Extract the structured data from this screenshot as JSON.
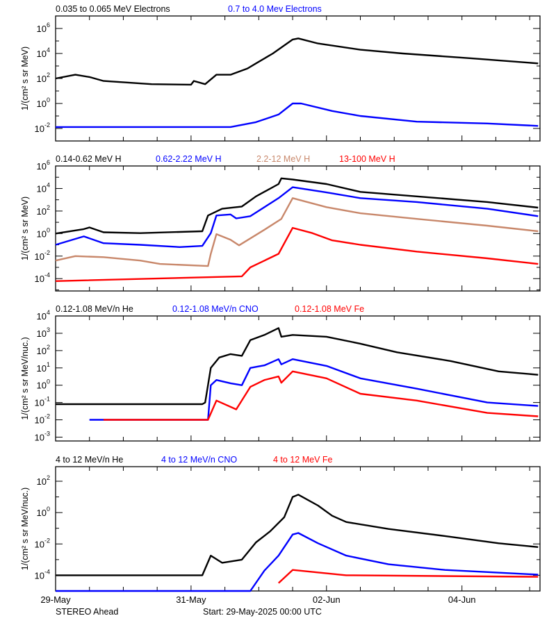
{
  "footer": {
    "spacecraft": "STEREO Ahead",
    "start": "Start: 29-May-2025 00:00 UTC"
  },
  "x_axis": {
    "range": [
      "2025-05-29 00:00",
      "2025-06-05 03:40"
    ],
    "ticks": [
      {
        "t": "2025-05-29 00:00",
        "label": "29-May"
      },
      {
        "t": "2025-05-31 00:00",
        "label": "31-May"
      },
      {
        "t": "2025-06-02 00:00",
        "label": "02-Jun"
      },
      {
        "t": "2025-06-04 00:00",
        "label": "04-Jun"
      }
    ],
    "minor_tick_hours": 12
  },
  "chart_data": [
    {
      "type": "line",
      "yscale": "log",
      "ylabel": "1/(cm² s sr MeV)",
      "ylim": [
        0.001,
        10000000.0
      ],
      "yticks": [
        1000000.0,
        10000.0,
        100.0,
        1,
        0.01
      ],
      "legend": [
        {
          "label": "0.035 to 0.065 MeV Electrons",
          "color": "#000000"
        },
        {
          "label": "0.7 to 4.0 Mev Electrons",
          "color": "#0000ff"
        }
      ],
      "series": [
        {
          "name": "0.035 to 0.065 MeV Electrons",
          "color": "#000000",
          "points": [
            [
              "2025-05-29 00:00",
              100
            ],
            [
              "2025-05-29 07:00",
              200
            ],
            [
              "2025-05-29 12:00",
              130
            ],
            [
              "2025-05-29 17:00",
              63
            ],
            [
              "2025-05-30 10:00",
              35
            ],
            [
              "2025-05-31 00:00",
              32
            ],
            [
              "2025-05-31 01:00",
              63
            ],
            [
              "2025-05-31 05:00",
              35
            ],
            [
              "2025-05-31 09:00",
              200
            ],
            [
              "2025-05-31 14:00",
              200
            ],
            [
              "2025-05-31 20:00",
              630
            ],
            [
              "2025-05-31 23:00",
              1600
            ],
            [
              "2025-06-01 05:00",
              10000.0
            ],
            [
              "2025-06-01 12:00",
              130000.0
            ],
            [
              "2025-06-01 14:00",
              160000.0
            ],
            [
              "2025-06-01 21:00",
              63000.0
            ],
            [
              "2025-06-02 12:00",
              20000.0
            ],
            [
              "2025-06-03 03:00",
              10000.0
            ],
            [
              "2025-06-04 04:00",
              4000.0
            ],
            [
              "2025-06-05 03:00",
              1600.0
            ]
          ]
        },
        {
          "name": "0.7 to 4.0 Mev Electrons",
          "color": "#0000ff",
          "points": [
            [
              "2025-05-29 00:00",
              0.013
            ],
            [
              "2025-05-31 14:00",
              0.013
            ],
            [
              "2025-05-31 23:00",
              0.032
            ],
            [
              "2025-06-01 07:00",
              0.13
            ],
            [
              "2025-06-01 12:00",
              1
            ],
            [
              "2025-06-01 15:00",
              1
            ],
            [
              "2025-06-02 02:00",
              0.25
            ],
            [
              "2025-06-02 12:00",
              0.1
            ],
            [
              "2025-06-03 08:00",
              0.035
            ],
            [
              "2025-06-04 09:00",
              0.025
            ],
            [
              "2025-06-05 03:00",
              0.016
            ]
          ]
        }
      ]
    },
    {
      "type": "line",
      "yscale": "log",
      "ylabel": "1/(cm² s sr MeV)",
      "ylim": [
        8e-06,
        1000000.0
      ],
      "yticks": [
        1000000.0,
        10000.0,
        100.0,
        1,
        0.01,
        0.0001
      ],
      "legend": [
        {
          "label": "0.14-0.62 MeV H",
          "color": "#000000"
        },
        {
          "label": "0.62-2.22 MeV H",
          "color": "#0000ff"
        },
        {
          "label": "2.2-12 MeV H",
          "color": "#c8876a"
        },
        {
          "label": "13-100 MeV H",
          "color": "#ff0000"
        }
      ],
      "series": [
        {
          "name": "0.14-0.62 MeV H",
          "color": "#000000",
          "points": [
            [
              "2025-05-29 00:00",
              1
            ],
            [
              "2025-05-29 10:00",
              2.5
            ],
            [
              "2025-05-29 12:00",
              3.5
            ],
            [
              "2025-05-29 17:00",
              1.3
            ],
            [
              "2025-05-30 06:00",
              1.1
            ],
            [
              "2025-05-31 04:00",
              1.6
            ],
            [
              "2025-05-31 06:00",
              40
            ],
            [
              "2025-05-31 11:00",
              160
            ],
            [
              "2025-05-31 18:00",
              250
            ],
            [
              "2025-05-31 23:00",
              2000
            ],
            [
              "2025-06-01 07:00",
              25000.0
            ],
            [
              "2025-06-01 08:00",
              80000.0
            ],
            [
              "2025-06-01 12:00",
              63000.0
            ],
            [
              "2025-06-02 00:00",
              25000.0
            ],
            [
              "2025-06-02 12:00",
              5000.0
            ],
            [
              "2025-06-03 08:00",
              2000.0
            ],
            [
              "2025-06-04 09:00",
              630
            ],
            [
              "2025-06-05 03:00",
              200
            ]
          ]
        },
        {
          "name": "0.62-2.22 MeV H",
          "color": "#0000ff",
          "points": [
            [
              "2025-05-29 00:00",
              0.1
            ],
            [
              "2025-05-29 10:00",
              0.56
            ],
            [
              "2025-05-29 17:00",
              0.14
            ],
            [
              "2025-05-30 06:00",
              0.1
            ],
            [
              "2025-05-30 20:00",
              0.063
            ],
            [
              "2025-05-31 04:00",
              0.08
            ],
            [
              "2025-05-31 07:00",
              1.1
            ],
            [
              "2025-05-31 09:00",
              40
            ],
            [
              "2025-05-31 14:00",
              50
            ],
            [
              "2025-05-31 16:00",
              22
            ],
            [
              "2025-05-31 21:00",
              35
            ],
            [
              "2025-06-01 07:00",
              1400
            ],
            [
              "2025-06-01 12:00",
              13000.0
            ],
            [
              "2025-06-02 00:00",
              4500
            ],
            [
              "2025-06-02 12:00",
              1400
            ],
            [
              "2025-06-03 08:00",
              630
            ],
            [
              "2025-06-04 09:00",
              160
            ],
            [
              "2025-06-05 03:00",
              35
            ]
          ]
        },
        {
          "name": "2.2-12 MeV H",
          "color": "#c8876a",
          "points": [
            [
              "2025-05-29 00:00",
              0.004
            ],
            [
              "2025-05-29 07:00",
              0.01
            ],
            [
              "2025-05-29 17:00",
              0.008
            ],
            [
              "2025-05-30 06:00",
              0.004
            ],
            [
              "2025-05-30 13:00",
              0.002
            ],
            [
              "2025-05-31 06:00",
              0.0013
            ],
            [
              "2025-05-31 07:00",
              0.016
            ],
            [
              "2025-05-31 09:00",
              0.9
            ],
            [
              "2025-05-31 14:00",
              0.28
            ],
            [
              "2025-05-31 17:00",
              0.09
            ],
            [
              "2025-06-01 02:00",
              2.2
            ],
            [
              "2025-06-01 08:00",
              20
            ],
            [
              "2025-06-01 12:00",
              1400
            ],
            [
              "2025-06-02 00:00",
              220
            ],
            [
              "2025-06-02 12:00",
              63
            ],
            [
              "2025-06-03 08:00",
              20
            ],
            [
              "2025-06-04 09:00",
              5
            ],
            [
              "2025-06-05 03:00",
              1.6
            ]
          ]
        },
        {
          "name": "13-100 MeV H",
          "color": "#ff0000",
          "points": [
            [
              "2025-05-29 00:00",
              6e-05
            ],
            [
              "2025-05-31 18:00",
              0.00016
            ],
            [
              "2025-05-31 21:00",
              0.001
            ],
            [
              "2025-06-01 07:00",
              0.016
            ],
            [
              "2025-06-01 12:00",
              3.2
            ],
            [
              "2025-06-01 19:00",
              1.1
            ],
            [
              "2025-06-02 02:00",
              0.25
            ],
            [
              "2025-06-02 12:00",
              0.1
            ],
            [
              "2025-06-03 08:00",
              0.025
            ],
            [
              "2025-06-04 09:00",
              0.0063
            ],
            [
              "2025-06-05 03:00",
              0.002
            ]
          ]
        }
      ]
    },
    {
      "type": "line",
      "yscale": "log",
      "ylabel": "1/(cm² s sr MeV/nuc.)",
      "ylim": [
        0.0006,
        10000.0
      ],
      "yticks": [
        10000.0,
        1000.0,
        100.0,
        10,
        1,
        0.1,
        0.01,
        0.001
      ],
      "legend": [
        {
          "label": "0.12-1.08 MeV/n He",
          "color": "#000000"
        },
        {
          "label": "0.12-1.08 MeV/n CNO",
          "color": "#0000ff"
        },
        {
          "label": "0.12-1.08 MeV Fe",
          "color": "#ff0000"
        }
      ],
      "series": [
        {
          "name": "0.12-1.08 MeV/n He",
          "color": "#000000",
          "points": [
            [
              "2025-05-29 00:00",
              0.08
            ],
            [
              "2025-05-31 04:00",
              0.08
            ],
            [
              "2025-05-31 05:00",
              0.1
            ],
            [
              "2025-05-31 07:00",
              10
            ],
            [
              "2025-05-31 10:00",
              40
            ],
            [
              "2025-05-31 14:00",
              63
            ],
            [
              "2025-05-31 18:00",
              50
            ],
            [
              "2025-05-31 21:00",
              400
            ],
            [
              "2025-06-01 02:00",
              800
            ],
            [
              "2025-06-01 07:00",
              2000
            ],
            [
              "2025-06-01 08:00",
              630
            ],
            [
              "2025-06-01 12:00",
              800
            ],
            [
              "2025-06-02 00:00",
              630
            ],
            [
              "2025-06-02 12:00",
              250
            ],
            [
              "2025-06-03 01:00",
              80
            ],
            [
              "2025-06-03 20:00",
              25
            ],
            [
              "2025-06-04 13:00",
              6.3
            ],
            [
              "2025-06-05 03:00",
              4
            ]
          ]
        },
        {
          "name": "0.12-1.08 MeV/n CNO",
          "color": "#0000ff",
          "points": [
            [
              "2025-05-29 12:00",
              0.01
            ],
            [
              "2025-05-31 06:00",
              0.01
            ],
            [
              "2025-05-31 07:00",
              1
            ],
            [
              "2025-05-31 09:00",
              2
            ],
            [
              "2025-05-31 14:00",
              1.3
            ],
            [
              "2025-05-31 18:00",
              1
            ],
            [
              "2025-05-31 21:00",
              10
            ],
            [
              "2025-06-01 02:00",
              14
            ],
            [
              "2025-06-01 07:00",
              32
            ],
            [
              "2025-06-01 08:00",
              16
            ],
            [
              "2025-06-01 12:00",
              32
            ],
            [
              "2025-06-02 00:00",
              13
            ],
            [
              "2025-06-02 12:00",
              2.5
            ],
            [
              "2025-06-03 08:00",
              0.63
            ],
            [
              "2025-06-04 09:00",
              0.1
            ],
            [
              "2025-06-05 03:00",
              0.063
            ]
          ]
        },
        {
          "name": "0.12-1.08 MeV Fe",
          "color": "#ff0000",
          "points": [
            [
              "2025-05-29 17:00",
              0.01
            ],
            [
              "2025-05-31 06:00",
              0.01
            ],
            [
              "2025-05-31 09:00",
              0.13
            ],
            [
              "2025-05-31 16:00",
              0.04
            ],
            [
              "2025-05-31 21:00",
              0.8
            ],
            [
              "2025-06-01 02:00",
              2
            ],
            [
              "2025-06-01 07:00",
              3.2
            ],
            [
              "2025-06-01 08:00",
              1.4
            ],
            [
              "2025-06-01 12:00",
              6.3
            ],
            [
              "2025-06-02 00:00",
              2.5
            ],
            [
              "2025-06-02 12:00",
              0.32
            ],
            [
              "2025-06-03 08:00",
              0.13
            ],
            [
              "2025-06-04 09:00",
              0.025
            ],
            [
              "2025-06-05 03:00",
              0.016
            ]
          ]
        }
      ]
    },
    {
      "type": "line",
      "yscale": "log",
      "ylabel": "1/(cm² s sr MeV/nuc.)",
      "ylim": [
        1e-05,
        850
      ],
      "yticks": [
        100,
        1,
        0.01,
        0.0001
      ],
      "legend": [
        {
          "label": "4 to 12 MeV/n He",
          "color": "#000000"
        },
        {
          "label": "4 to 12 MeV/n CNO",
          "color": "#0000ff"
        },
        {
          "label": "4 to 12 MeV Fe",
          "color": "#ff0000"
        }
      ],
      "series": [
        {
          "name": "4 to 12 MeV/n He",
          "color": "#000000",
          "points": [
            [
              "2025-05-29 00:00",
              0.0001
            ],
            [
              "2025-05-31 04:00",
              0.0001
            ],
            [
              "2025-05-31 07:00",
              0.0018
            ],
            [
              "2025-05-31 11:00",
              0.00063
            ],
            [
              "2025-05-31 18:00",
              0.001
            ],
            [
              "2025-05-31 23:00",
              0.0126
            ],
            [
              "2025-06-01 04:00",
              0.063
            ],
            [
              "2025-06-01 09:00",
              0.5
            ],
            [
              "2025-06-01 12:00",
              10
            ],
            [
              "2025-06-01 14:00",
              14
            ],
            [
              "2025-06-01 21:00",
              2.8
            ],
            [
              "2025-06-02 02:00",
              0.63
            ],
            [
              "2025-06-02 07:00",
              0.25
            ],
            [
              "2025-06-02 22:00",
              0.09
            ],
            [
              "2025-06-03 18:00",
              0.032
            ],
            [
              "2025-06-04 13:00",
              0.011
            ],
            [
              "2025-06-05 03:00",
              0.0063
            ]
          ]
        },
        {
          "name": "4 to 12 MeV/n CNO",
          "color": "#0000ff",
          "points": [
            [
              "2025-05-29 00:00",
              1e-05
            ],
            [
              "2025-05-31 21:00",
              1e-05
            ],
            [
              "2025-06-01 02:00",
              0.0002
            ],
            [
              "2025-06-01 07:00",
              0.0018
            ],
            [
              "2025-06-01 12:00",
              0.04
            ],
            [
              "2025-06-01 14:00",
              0.05
            ],
            [
              "2025-06-01 21:00",
              0.011
            ],
            [
              "2025-06-02 07:00",
              0.0018
            ],
            [
              "2025-06-02 22:00",
              0.0005
            ],
            [
              "2025-06-03 18:00",
              0.00022
            ],
            [
              "2025-06-05 03:00",
              0.00011
            ]
          ]
        },
        {
          "name": "4 to 12 MeV Fe",
          "color": "#ff0000",
          "points": [
            [
              "2025-06-01 07:00",
              3.2e-05
            ],
            [
              "2025-06-01 12:00",
              0.00022
            ],
            [
              "2025-06-02 07:00",
              0.0001
            ],
            [
              "2025-06-05 03:00",
              8e-05
            ]
          ]
        }
      ]
    }
  ]
}
